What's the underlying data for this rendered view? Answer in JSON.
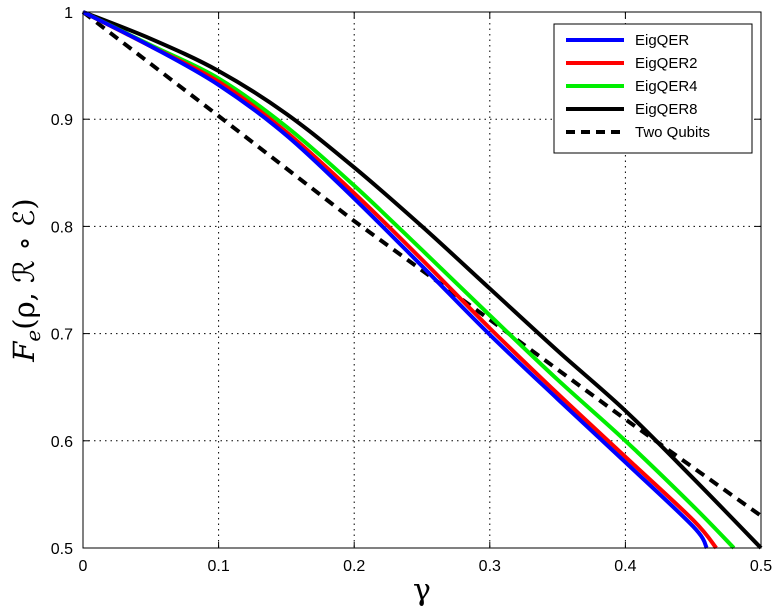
{
  "chart_data": {
    "type": "line",
    "xlabel": "γ",
    "ylabel_parts": {
      "main": "F",
      "sub": "e",
      "args": "(ρ, ℛ ∘ ℰ)"
    },
    "xlim": [
      0,
      0.5
    ],
    "ylim": [
      0.5,
      1
    ],
    "xticks": [
      "0",
      "0.1",
      "0.2",
      "0.3",
      "0.4",
      "0.5"
    ],
    "xtick_values": [
      0,
      0.1,
      0.2,
      0.3,
      0.4,
      0.5
    ],
    "yticks": [
      "0.5",
      "0.6",
      "0.7",
      "0.8",
      "0.9",
      "1"
    ],
    "ytick_values": [
      0.5,
      0.6,
      0.7,
      0.8,
      0.9,
      1.0
    ],
    "grid": true,
    "legend_position": "top-right",
    "series": [
      {
        "name": "EigQER",
        "color": "#0000ff",
        "dash": "solid",
        "x": [
          0,
          0.05,
          0.1,
          0.15,
          0.2,
          0.25,
          0.3,
          0.35,
          0.4,
          0.45,
          0.46
        ],
        "y": [
          1.0,
          0.968,
          0.932,
          0.885,
          0.826,
          0.763,
          0.699,
          0.639,
          0.58,
          0.52,
          0.5
        ]
      },
      {
        "name": "EigQER2",
        "color": "#ff0000",
        "dash": "solid",
        "x": [
          0,
          0.05,
          0.1,
          0.15,
          0.2,
          0.25,
          0.3,
          0.35,
          0.4,
          0.45,
          0.467
        ],
        "y": [
          1.0,
          0.968,
          0.935,
          0.888,
          0.831,
          0.769,
          0.705,
          0.644,
          0.585,
          0.526,
          0.5
        ]
      },
      {
        "name": "EigQER4",
        "color": "#00ee00",
        "dash": "solid",
        "x": [
          0,
          0.05,
          0.1,
          0.15,
          0.2,
          0.25,
          0.3,
          0.35,
          0.4,
          0.45,
          0.48
        ],
        "y": [
          1.0,
          0.969,
          0.938,
          0.893,
          0.838,
          0.778,
          0.717,
          0.657,
          0.6,
          0.539,
          0.5
        ]
      },
      {
        "name": "EigQER8",
        "color": "#000000",
        "dash": "solid",
        "x": [
          0,
          0.05,
          0.1,
          0.15,
          0.2,
          0.25,
          0.3,
          0.35,
          0.4,
          0.45,
          0.5
        ],
        "y": [
          1.0,
          0.975,
          0.945,
          0.905,
          0.855,
          0.8,
          0.742,
          0.684,
          0.628,
          0.565,
          0.5
        ]
      },
      {
        "name": "Two Qubits",
        "color": "#000000",
        "dash": "dashed",
        "x": [
          0,
          0.1,
          0.2,
          0.3,
          0.4,
          0.5
        ],
        "y": [
          1.0,
          0.903,
          0.805,
          0.713,
          0.62,
          0.53
        ]
      }
    ]
  }
}
